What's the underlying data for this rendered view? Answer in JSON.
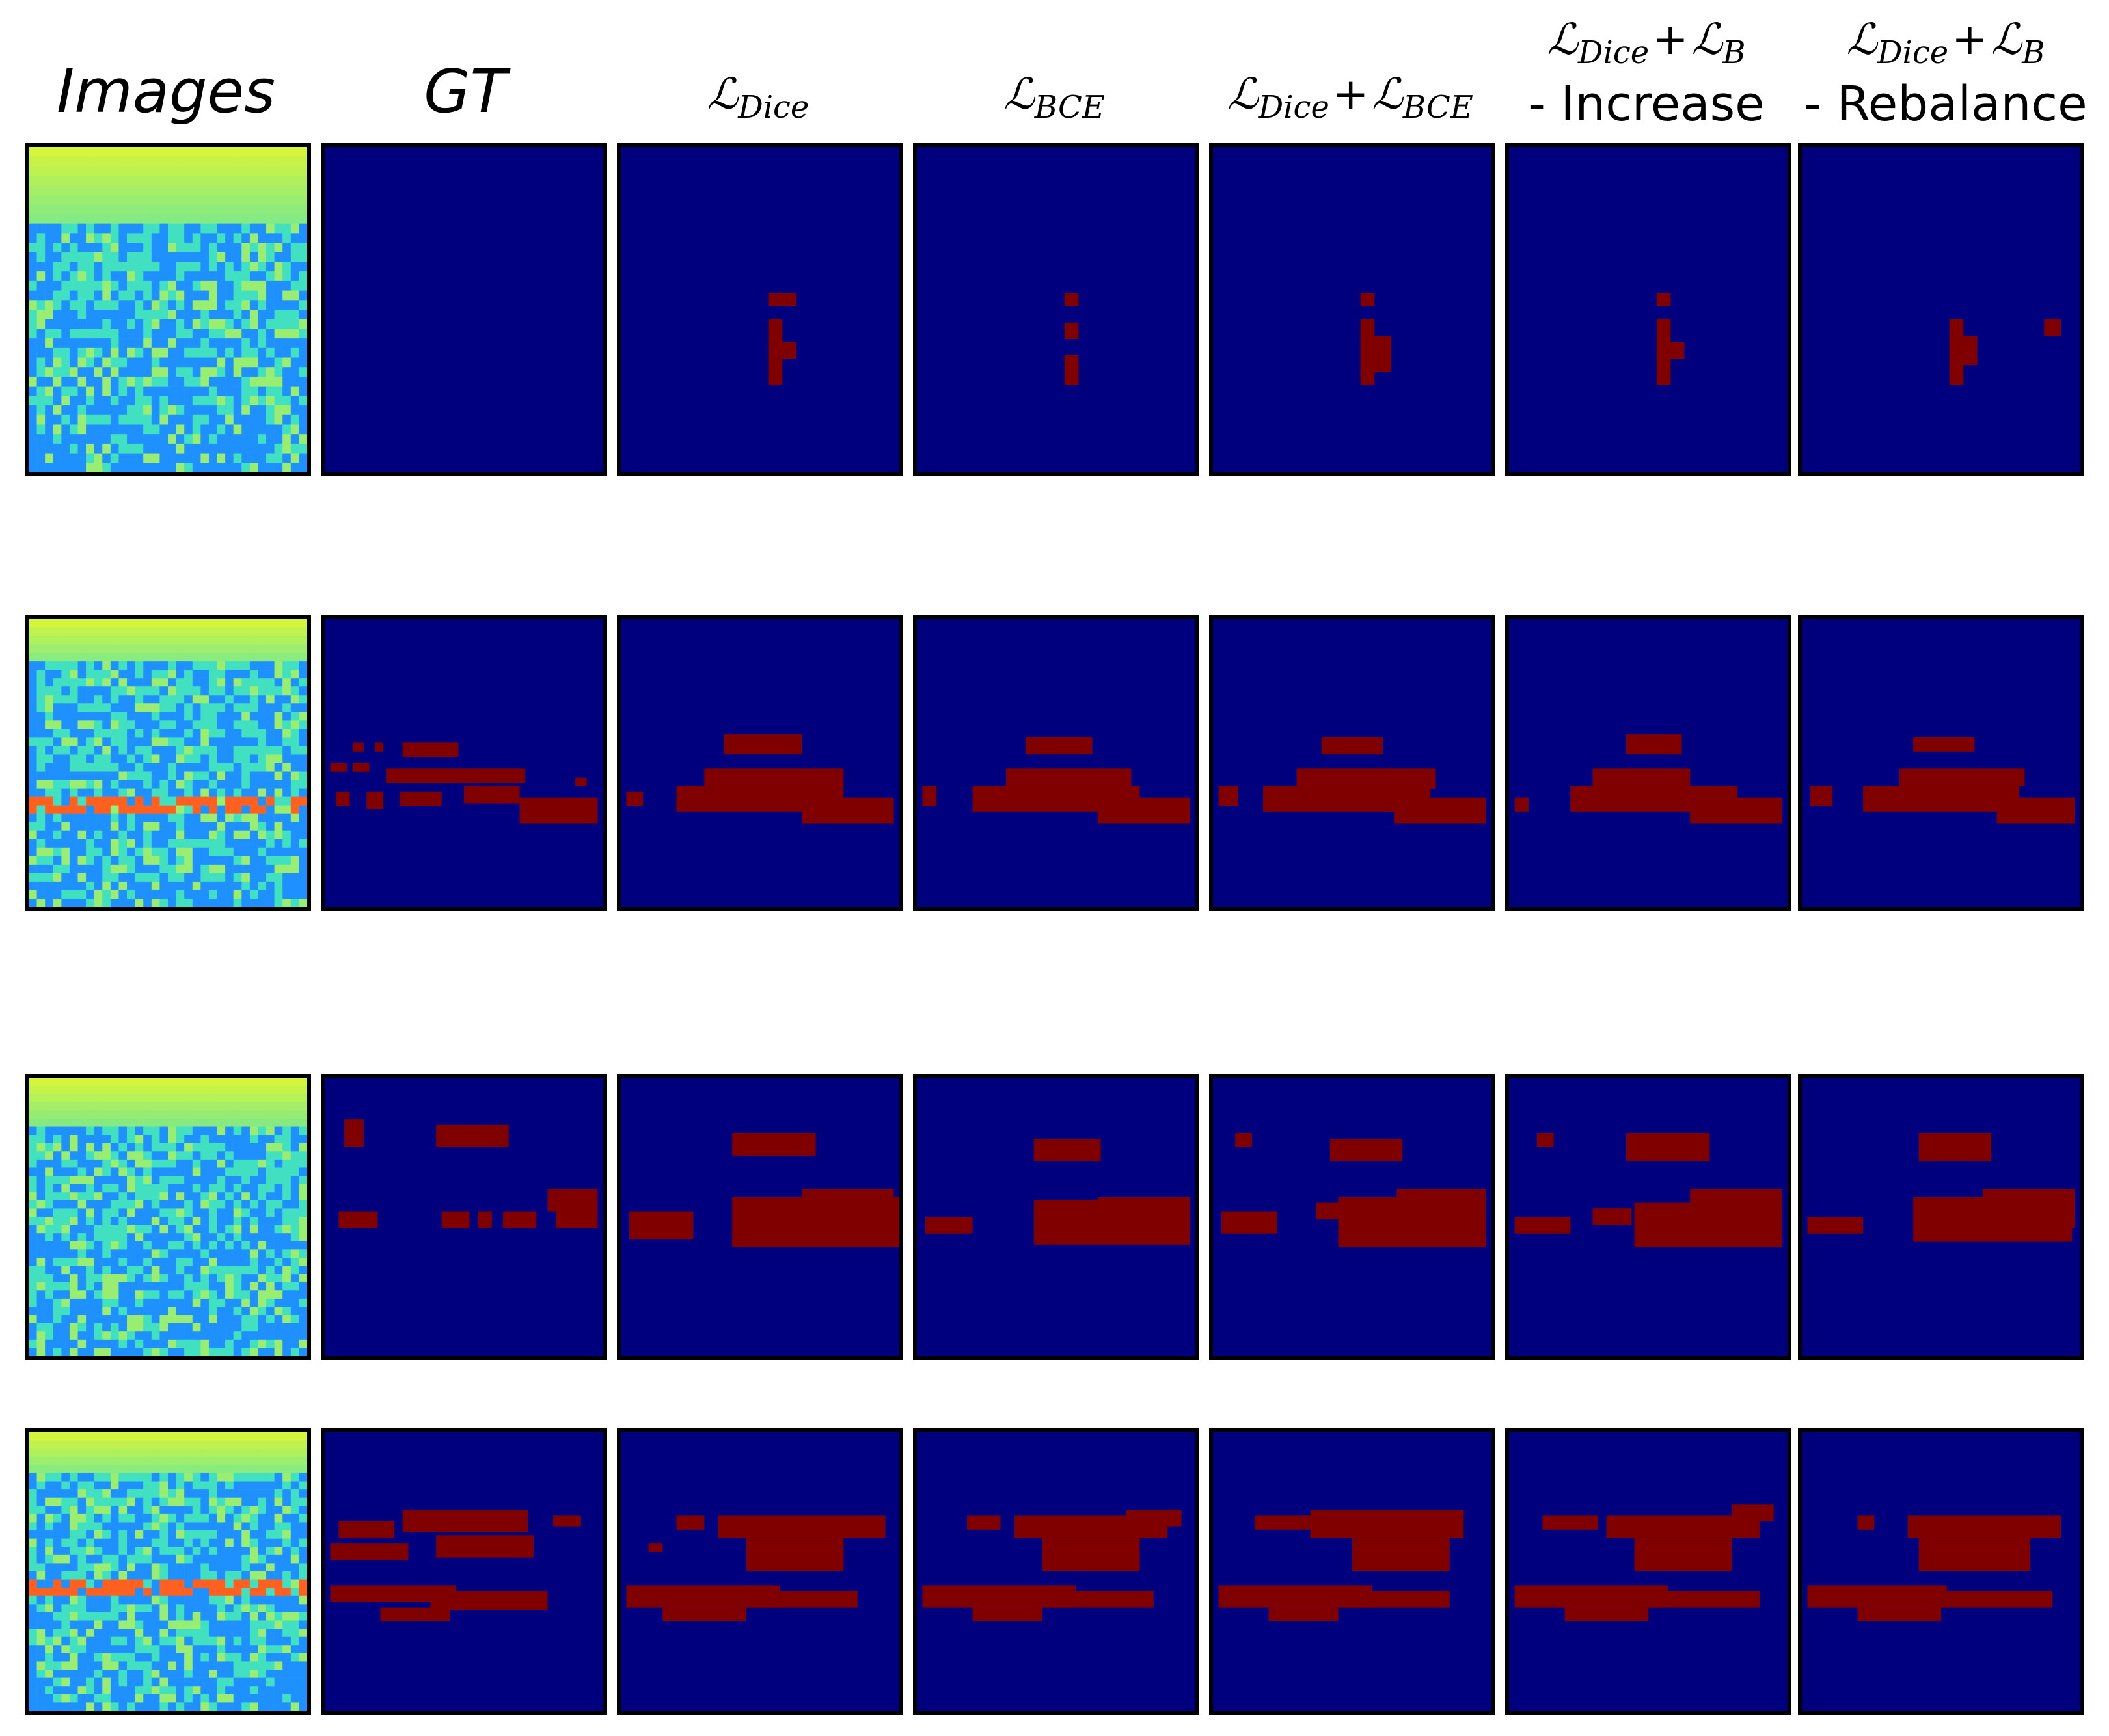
{
  "headers": {
    "images": "Images",
    "gt": "GT",
    "dice": {
      "symbol": "ℒ",
      "sub": "Dice"
    },
    "bce": {
      "symbol": "ℒ",
      "sub": "BCE"
    },
    "dice_bce": {
      "a_symbol": "ℒ",
      "a_sub": "Dice",
      "op": "+",
      "b_symbol": "ℒ",
      "b_sub": "BCE"
    },
    "increase": {
      "a_symbol": "ℒ",
      "a_sub": "Dice",
      "op": "+",
      "b_symbol": "ℒ",
      "b_sub": "B",
      "line2": "- Increase"
    },
    "rebalance": {
      "a_symbol": "ℒ",
      "a_sub": "Dice",
      "op": "+",
      "b_symbol": "ℒ",
      "b_sub": "B",
      "line2": "- Rebalance"
    }
  },
  "colors": {
    "background_class": "#00007f",
    "foreground_class": "#800000",
    "image_low": "#1e90ff",
    "image_mid": "#40e0c0",
    "image_high": "#d4f53c",
    "image_hot": "#ff6020"
  },
  "rows": [
    {
      "row_id": "row-1",
      "image": {
        "seed": 11,
        "gradient_rows": 8,
        "hot_band": null
      },
      "masks": {
        "gt": [],
        "dice": [
          [
            0.53,
            0.45,
            0.1,
            0.04
          ],
          [
            0.53,
            0.53,
            0.05,
            0.2
          ],
          [
            0.53,
            0.6,
            0.1,
            0.05
          ]
        ],
        "bce": [
          [
            0.53,
            0.45,
            0.05,
            0.04
          ],
          [
            0.53,
            0.54,
            0.05,
            0.05
          ],
          [
            0.53,
            0.64,
            0.05,
            0.09
          ]
        ],
        "dice_bce": [
          [
            0.53,
            0.45,
            0.05,
            0.04
          ],
          [
            0.53,
            0.53,
            0.05,
            0.2
          ],
          [
            0.53,
            0.58,
            0.11,
            0.11
          ]
        ],
        "increase": [
          [
            0.53,
            0.45,
            0.05,
            0.04
          ],
          [
            0.53,
            0.53,
            0.05,
            0.2
          ],
          [
            0.53,
            0.6,
            0.1,
            0.05
          ]
        ],
        "rebalance": [
          [
            0.53,
            0.53,
            0.05,
            0.2
          ],
          [
            0.53,
            0.58,
            0.1,
            0.09
          ],
          [
            0.87,
            0.53,
            0.06,
            0.05
          ]
        ]
      }
    },
    {
      "row_id": "row-2",
      "image": {
        "seed": 23,
        "gradient_rows": 5,
        "hot_band": 0.64
      },
      "masks": {
        "gt": [
          [
            0.1,
            0.43,
            0.04,
            0.03
          ],
          [
            0.18,
            0.43,
            0.03,
            0.03
          ],
          [
            0.28,
            0.43,
            0.2,
            0.05
          ],
          [
            0.02,
            0.5,
            0.06,
            0.03
          ],
          [
            0.1,
            0.5,
            0.06,
            0.03
          ],
          [
            0.22,
            0.52,
            0.5,
            0.05
          ],
          [
            0.04,
            0.6,
            0.05,
            0.05
          ],
          [
            0.15,
            0.6,
            0.06,
            0.06
          ],
          [
            0.27,
            0.6,
            0.15,
            0.05
          ],
          [
            0.5,
            0.58,
            0.2,
            0.06
          ],
          [
            0.7,
            0.62,
            0.28,
            0.09
          ],
          [
            0.9,
            0.55,
            0.04,
            0.03
          ]
        ],
        "dice": [
          [
            0.37,
            0.4,
            0.28,
            0.07
          ],
          [
            0.02,
            0.6,
            0.06,
            0.05
          ],
          [
            0.3,
            0.52,
            0.5,
            0.07
          ],
          [
            0.2,
            0.58,
            0.6,
            0.09
          ],
          [
            0.65,
            0.62,
            0.33,
            0.09
          ]
        ],
        "bce": [
          [
            0.39,
            0.41,
            0.24,
            0.06
          ],
          [
            0.02,
            0.58,
            0.05,
            0.07
          ],
          [
            0.32,
            0.52,
            0.45,
            0.07
          ],
          [
            0.2,
            0.58,
            0.6,
            0.09
          ],
          [
            0.65,
            0.62,
            0.33,
            0.09
          ]
        ],
        "dice_bce": [
          [
            0.39,
            0.41,
            0.22,
            0.06
          ],
          [
            0.02,
            0.58,
            0.07,
            0.07
          ],
          [
            0.3,
            0.52,
            0.5,
            0.07
          ],
          [
            0.18,
            0.58,
            0.6,
            0.09
          ],
          [
            0.65,
            0.62,
            0.33,
            0.09
          ]
        ],
        "increase": [
          [
            0.42,
            0.4,
            0.2,
            0.07
          ],
          [
            0.02,
            0.62,
            0.05,
            0.05
          ],
          [
            0.3,
            0.52,
            0.35,
            0.07
          ],
          [
            0.22,
            0.58,
            0.6,
            0.09
          ],
          [
            0.65,
            0.62,
            0.33,
            0.09
          ]
        ],
        "rebalance": [
          [
            0.4,
            0.41,
            0.22,
            0.05
          ],
          [
            0.03,
            0.58,
            0.08,
            0.07
          ],
          [
            0.35,
            0.52,
            0.45,
            0.06
          ],
          [
            0.22,
            0.58,
            0.56,
            0.09
          ],
          [
            0.7,
            0.62,
            0.28,
            0.09
          ]
        ]
      }
    },
    {
      "row_id": "row-3",
      "image": {
        "seed": 37,
        "gradient_rows": 6,
        "hot_band": null
      },
      "masks": {
        "gt": [
          [
            0.07,
            0.15,
            0.07,
            0.1
          ],
          [
            0.4,
            0.17,
            0.26,
            0.08
          ],
          [
            0.05,
            0.48,
            0.14,
            0.06
          ],
          [
            0.42,
            0.48,
            0.1,
            0.06
          ],
          [
            0.55,
            0.48,
            0.05,
            0.06
          ],
          [
            0.64,
            0.48,
            0.12,
            0.06
          ],
          [
            0.8,
            0.4,
            0.18,
            0.08
          ],
          [
            0.83,
            0.48,
            0.15,
            0.06
          ]
        ],
        "dice": [
          [
            0.4,
            0.2,
            0.3,
            0.08
          ],
          [
            0.03,
            0.48,
            0.23,
            0.1
          ],
          [
            0.4,
            0.43,
            0.6,
            0.18
          ],
          [
            0.65,
            0.4,
            0.33,
            0.1
          ]
        ],
        "bce": [
          [
            0.42,
            0.22,
            0.24,
            0.08
          ],
          [
            0.03,
            0.5,
            0.17,
            0.06
          ],
          [
            0.42,
            0.44,
            0.56,
            0.16
          ],
          [
            0.65,
            0.43,
            0.33,
            0.12
          ]
        ],
        "dice_bce": [
          [
            0.08,
            0.2,
            0.06,
            0.05
          ],
          [
            0.42,
            0.22,
            0.26,
            0.08
          ],
          [
            0.03,
            0.48,
            0.2,
            0.08
          ],
          [
            0.37,
            0.45,
            0.1,
            0.06
          ],
          [
            0.45,
            0.43,
            0.53,
            0.18
          ],
          [
            0.66,
            0.4,
            0.32,
            0.12
          ]
        ],
        "increase": [
          [
            0.1,
            0.2,
            0.06,
            0.05
          ],
          [
            0.42,
            0.2,
            0.3,
            0.1
          ],
          [
            0.02,
            0.5,
            0.2,
            0.06
          ],
          [
            0.3,
            0.47,
            0.14,
            0.06
          ],
          [
            0.45,
            0.45,
            0.53,
            0.16
          ],
          [
            0.65,
            0.4,
            0.33,
            0.12
          ]
        ],
        "rebalance": [
          [
            0.42,
            0.2,
            0.26,
            0.1
          ],
          [
            0.02,
            0.5,
            0.2,
            0.06
          ],
          [
            0.4,
            0.43,
            0.57,
            0.16
          ],
          [
            0.65,
            0.4,
            0.33,
            0.14
          ]
        ]
      }
    },
    {
      "row_id": "row-4",
      "image": {
        "seed": 51,
        "gradient_rows": 5,
        "hot_band": 0.55
      },
      "masks": {
        "gt": [
          [
            0.05,
            0.32,
            0.2,
            0.06
          ],
          [
            0.28,
            0.28,
            0.45,
            0.08
          ],
          [
            0.02,
            0.4,
            0.28,
            0.06
          ],
          [
            0.4,
            0.37,
            0.35,
            0.08
          ],
          [
            0.02,
            0.55,
            0.45,
            0.06
          ],
          [
            0.38,
            0.57,
            0.42,
            0.07
          ],
          [
            0.2,
            0.63,
            0.25,
            0.05
          ],
          [
            0.82,
            0.3,
            0.1,
            0.04
          ]
        ],
        "dice": [
          [
            0.2,
            0.3,
            0.1,
            0.05
          ],
          [
            0.35,
            0.3,
            0.6,
            0.08
          ],
          [
            0.1,
            0.4,
            0.05,
            0.03
          ],
          [
            0.45,
            0.38,
            0.35,
            0.12
          ],
          [
            0.02,
            0.55,
            0.55,
            0.08
          ],
          [
            0.45,
            0.57,
            0.4,
            0.06
          ],
          [
            0.15,
            0.63,
            0.3,
            0.05
          ]
        ],
        "bce": [
          [
            0.18,
            0.3,
            0.12,
            0.05
          ],
          [
            0.35,
            0.3,
            0.55,
            0.08
          ],
          [
            0.45,
            0.38,
            0.35,
            0.12
          ],
          [
            0.02,
            0.55,
            0.55,
            0.08
          ],
          [
            0.4,
            0.57,
            0.45,
            0.06
          ],
          [
            0.2,
            0.63,
            0.25,
            0.05
          ],
          [
            0.75,
            0.28,
            0.2,
            0.06
          ]
        ],
        "dice_bce": [
          [
            0.15,
            0.3,
            0.2,
            0.05
          ],
          [
            0.35,
            0.28,
            0.55,
            0.1
          ],
          [
            0.5,
            0.38,
            0.35,
            0.12
          ],
          [
            0.02,
            0.55,
            0.55,
            0.08
          ],
          [
            0.45,
            0.57,
            0.4,
            0.06
          ],
          [
            0.2,
            0.63,
            0.25,
            0.05
          ]
        ],
        "increase": [
          [
            0.12,
            0.3,
            0.2,
            0.05
          ],
          [
            0.35,
            0.3,
            0.55,
            0.08
          ],
          [
            0.45,
            0.38,
            0.35,
            0.12
          ],
          [
            0.02,
            0.55,
            0.55,
            0.08
          ],
          [
            0.45,
            0.57,
            0.45,
            0.06
          ],
          [
            0.2,
            0.63,
            0.3,
            0.05
          ],
          [
            0.8,
            0.26,
            0.15,
            0.06
          ]
        ],
        "rebalance": [
          [
            0.2,
            0.3,
            0.06,
            0.05
          ],
          [
            0.38,
            0.3,
            0.55,
            0.08
          ],
          [
            0.42,
            0.38,
            0.4,
            0.12
          ],
          [
            0.02,
            0.55,
            0.5,
            0.08
          ],
          [
            0.45,
            0.57,
            0.45,
            0.06
          ],
          [
            0.2,
            0.63,
            0.3,
            0.05
          ]
        ]
      }
    }
  ]
}
